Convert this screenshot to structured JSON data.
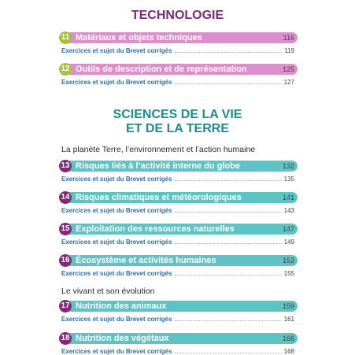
{
  "sections": [
    {
      "title": "TECHNOLOGIE",
      "chapters": [
        {
          "number": 11,
          "title": "Matériaux et objets techniques",
          "page": 116,
          "exercise": "Exercices et sujet du Brevet corrigés",
          "exercise_page": 119
        },
        {
          "number": 12,
          "title": "Outils de description et de représentation",
          "page": 125,
          "exercise": "Exercices et sujet du Brevet corrigés",
          "exercise_page": 127
        }
      ]
    },
    {
      "title_lines": [
        "SCIENCES DE LA VIE",
        "ET DE LA TERRE"
      ],
      "groups": [
        {
          "heading": "La planète Terre, l’environnement et l’action humaine",
          "chapters": [
            {
              "number": 13,
              "title": "Risques liés à l’activité interne du globe",
              "page": 132,
              "exercise": "Exercices et sujet du Brevet corrigés",
              "exercise_page": 135
            },
            {
              "number": 14,
              "title": "Risques climatiques et météorologiques",
              "page": 141,
              "exercise": "Exercices et sujet du Brevet corrigés",
              "exercise_page": 143
            },
            {
              "number": 15,
              "title": "Exploitation des ressources naturelles",
              "page": 147,
              "exercise": "Exercices et sujet du Brevet corrigés",
              "exercise_page": 149
            },
            {
              "number": 16,
              "title": "Écosystème et activités humaines",
              "page": 153,
              "exercise": "Exercices et sujet du Brevet corrigés",
              "exercise_page": 155
            }
          ]
        },
        {
          "heading": "Le vivant et son évolution",
          "chapters": [
            {
              "number": 17,
              "title": "Nutrition des animaux",
              "page": 159,
              "exercise": "Exercices et sujet du Brevet corrigés",
              "exercise_page": 161
            },
            {
              "number": 18,
              "title": "Nutrition des végétaux",
              "page": 166,
              "exercise": "Exercices et sujet du Brevet corrigés",
              "exercise_page": 168
            }
          ]
        }
      ]
    }
  ]
}
